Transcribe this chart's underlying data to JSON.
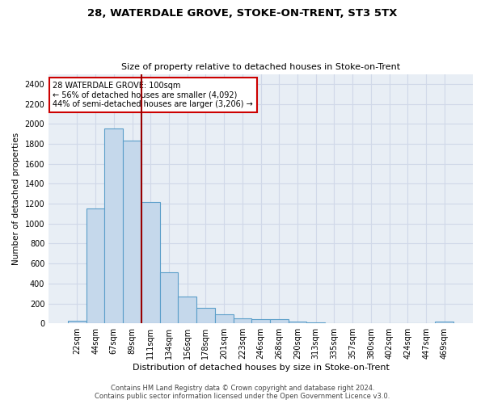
{
  "title_line1": "28, WATERDALE GROVE, STOKE-ON-TRENT, ST3 5TX",
  "title_line2": "Size of property relative to detached houses in Stoke-on-Trent",
  "xlabel": "Distribution of detached houses by size in Stoke-on-Trent",
  "ylabel": "Number of detached properties",
  "categories": [
    "22sqm",
    "44sqm",
    "67sqm",
    "89sqm",
    "111sqm",
    "134sqm",
    "156sqm",
    "178sqm",
    "201sqm",
    "223sqm",
    "246sqm",
    "268sqm",
    "290sqm",
    "313sqm",
    "335sqm",
    "357sqm",
    "380sqm",
    "402sqm",
    "424sqm",
    "447sqm",
    "469sqm"
  ],
  "values": [
    30,
    1155,
    1950,
    1835,
    1220,
    510,
    265,
    155,
    90,
    50,
    45,
    45,
    20,
    10,
    5,
    5,
    5,
    5,
    0,
    0,
    20
  ],
  "bar_color": "#c5d8eb",
  "bar_edge_color": "#5a9ec9",
  "marker_label_line1": "28 WATERDALE GROVE: 100sqm",
  "marker_label_line2": "← 56% of detached houses are smaller (4,092)",
  "marker_label_line3": "44% of semi-detached houses are larger (3,206) →",
  "annotation_box_color": "#ffffff",
  "annotation_box_edge": "#cc0000",
  "vline_color": "#990000",
  "vline_x_index": 3.5,
  "ylim": [
    0,
    2500
  ],
  "yticks": [
    0,
    200,
    400,
    600,
    800,
    1000,
    1200,
    1400,
    1600,
    1800,
    2000,
    2200,
    2400
  ],
  "grid_color": "#d0d8e8",
  "background_color": "#e8eef5",
  "footer_line1": "Contains HM Land Registry data © Crown copyright and database right 2024.",
  "footer_line2": "Contains public sector information licensed under the Open Government Licence v3.0."
}
